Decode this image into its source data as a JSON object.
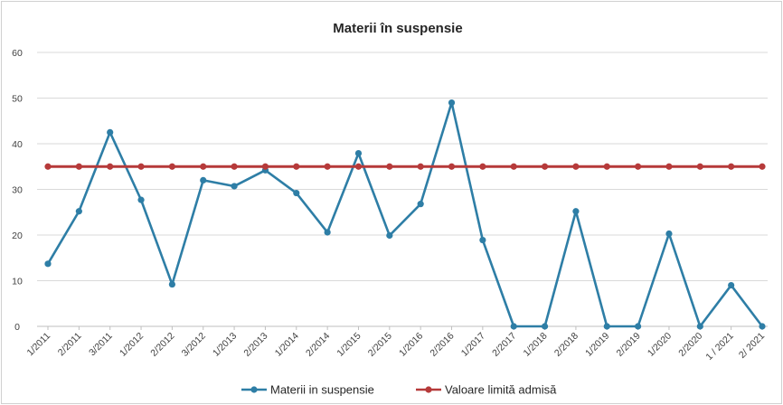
{
  "colors": {
    "series1": "#2e7ea6",
    "series2": "#b63a3a",
    "grid": "#d9d9d9",
    "axis": "#bfbfbf"
  },
  "chart_data": {
    "type": "line",
    "title": "Materii în suspensie",
    "xlabel": "",
    "ylabel": "",
    "ylim": [
      0,
      60
    ],
    "yticks": [
      0,
      10,
      20,
      30,
      40,
      50,
      60
    ],
    "grid": true,
    "legend_position": "bottom",
    "categories": [
      "1/2011",
      "2/2011",
      "3/2011",
      "1/2012",
      "2/2012",
      "3/2012",
      "1/2013",
      "2/2013",
      "1/2014",
      "2/2014",
      "1/2015",
      "2/2015",
      "1/2016",
      "2/2016",
      "1/2017",
      "2/2017",
      "1/2018",
      "2/2018",
      "1/2019",
      "2/2019",
      "1/2020",
      "2/2020",
      "1 / 2021",
      "2/ 2021"
    ],
    "series": [
      {
        "name": "Materii in suspensie",
        "color": "#2e7ea6",
        "values": [
          13.7,
          25.2,
          42.5,
          27.7,
          9.2,
          32,
          30.7,
          34.2,
          29.2,
          20.6,
          37.9,
          19.9,
          26.8,
          49,
          18.9,
          0,
          0,
          25.2,
          0,
          0,
          20.3,
          0,
          9,
          0
        ]
      },
      {
        "name": "Valoare limită admisă",
        "color": "#b63a3a",
        "values": [
          35,
          35,
          35,
          35,
          35,
          35,
          35,
          35,
          35,
          35,
          35,
          35,
          35,
          35,
          35,
          35,
          35,
          35,
          35,
          35,
          35,
          35,
          35,
          35
        ]
      }
    ]
  }
}
